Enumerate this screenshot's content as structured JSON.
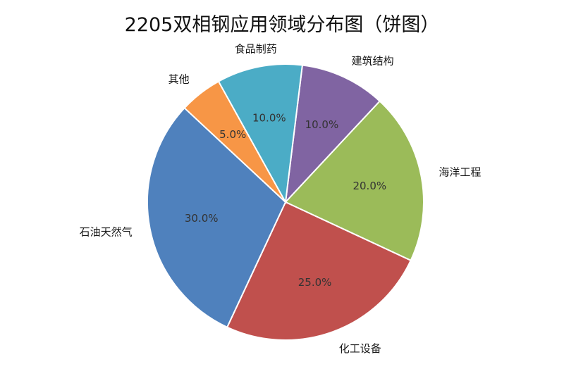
{
  "chart_data": {
    "type": "pie",
    "title": "2205双相钢应用领域分布图（饼图）",
    "categories": [
      "建筑结构",
      "海洋工程",
      "化工设备",
      "石油天然气",
      "其他",
      "食品制药"
    ],
    "values": [
      10,
      20,
      25,
      30,
      5,
      10
    ],
    "value_labels": [
      "10.0%",
      "20.0%",
      "25.0%",
      "30.0%",
      "5.0%",
      "10.0%"
    ],
    "colors": [
      "#8064A2",
      "#9BBB59",
      "#C0504D",
      "#4F81BD",
      "#F79646",
      "#4BACC6"
    ],
    "legend": "none"
  }
}
